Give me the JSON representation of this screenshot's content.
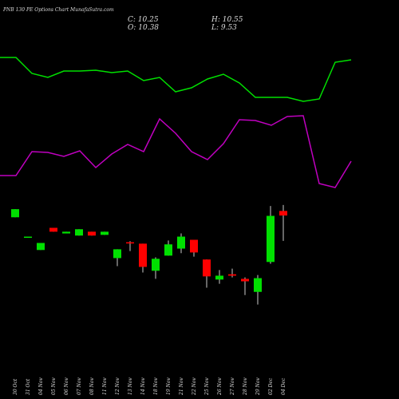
{
  "chart_data": [
    {
      "type": "line",
      "ylim": [
        0,
        250
      ],
      "series": [
        {
          "color": "#00e000",
          "values": [
            178,
            178,
            158,
            153,
            161,
            161,
            162,
            159,
            161,
            149,
            153,
            135,
            140,
            151,
            157,
            146,
            128,
            128,
            128,
            123,
            126,
            172,
            175
          ]
        },
        {
          "color": "#c000c0",
          "values": [
            30,
            30,
            60,
            59,
            54,
            61,
            40,
            57,
            69,
            60,
            101,
            83,
            60,
            50,
            70,
            100,
            99,
            93,
            104,
            105,
            20,
            15,
            48
          ]
        }
      ]
    },
    {
      "type": "candlestick",
      "title": "PNB 130 PE Options Chart MunafaSutra.com",
      "summary": [
        "C: 10.25",
        "H: 10.55",
        "O: 10.38",
        "L: 9.53"
      ],
      "categories": [
        "30 Oct",
        "31 Oct",
        "04 Nov",
        "05 Nov",
        "06 Nov",
        "07 Nov",
        "08 Nov",
        "11 Nov",
        "12 Nov",
        "13 Nov",
        "14 Nov",
        "18 Nov",
        "19 Nov",
        "21 Nov",
        "22 Nov",
        "25 Nov",
        "26 Nov",
        "27 Nov",
        "28 Nov",
        "29 Nov",
        "02 Dec",
        "04 Dec"
      ],
      "open": [
        10.2,
        9.65,
        9.27,
        9.9,
        9.74,
        9.68,
        9.79,
        9.7,
        9.04,
        9.49,
        9.45,
        8.68,
        9.11,
        9.31,
        9.56,
        9.0,
        8.43,
        8.58,
        8.45,
        8.08,
        8.93,
        10.38
      ],
      "high": [
        10.43,
        9.65,
        9.47,
        9.9,
        9.79,
        9.86,
        9.79,
        9.79,
        9.29,
        9.52,
        9.45,
        9.06,
        9.54,
        9.74,
        9.56,
        9.0,
        8.7,
        8.74,
        8.49,
        8.56,
        10.52,
        10.55
      ],
      "low": [
        10.2,
        9.65,
        9.27,
        9.79,
        9.74,
        9.68,
        9.68,
        9.7,
        8.81,
        9.24,
        8.63,
        8.45,
        9.11,
        9.18,
        9.08,
        8.2,
        8.31,
        8.49,
        7.99,
        7.72,
        8.88,
        9.53
      ],
      "close": [
        10.43,
        9.65,
        9.47,
        9.79,
        9.79,
        9.86,
        9.68,
        9.79,
        9.29,
        9.47,
        8.79,
        9.02,
        9.43,
        9.65,
        9.2,
        8.52,
        8.54,
        8.54,
        8.38,
        8.47,
        10.24,
        10.25
      ],
      "up_color": "#00e000",
      "down_color": "#ff0000",
      "wick_color": "#cccccc",
      "ylim": [
        6.6,
        11.0
      ]
    }
  ]
}
